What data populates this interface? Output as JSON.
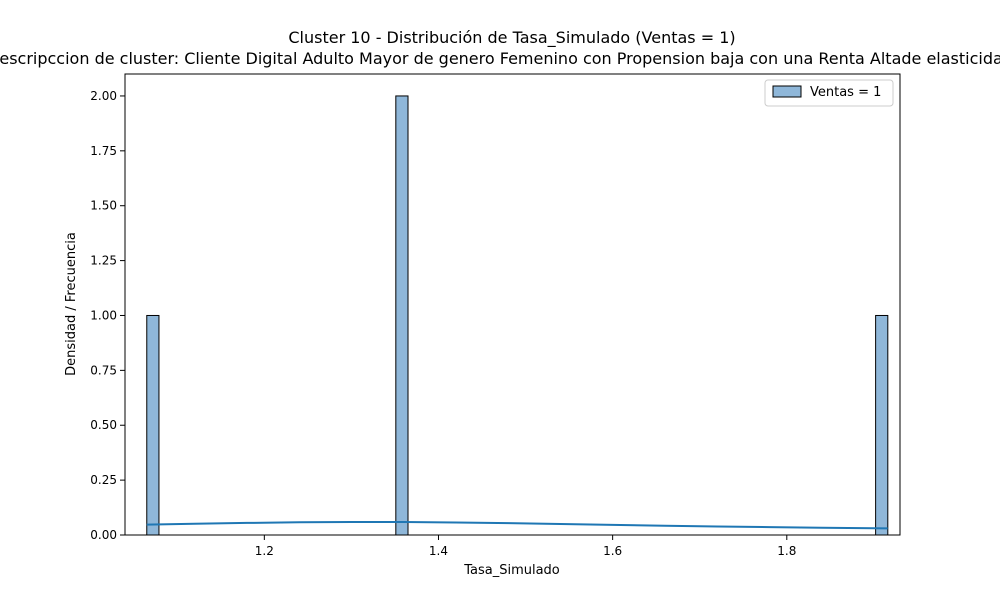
{
  "chart_data": {
    "type": "bar",
    "title": "Cluster 10 - Distribución de Tasa_Simulado (Ventas = 1)",
    "subtitle": "Descripccion de cluster: Cliente Digital Adulto Mayor de genero Femenino con Propension baja con una Renta Altade elasticidad",
    "xlabel": "Tasa_Simulado",
    "ylabel": "Densidad / Frecuencia",
    "xlim": [
      1.04,
      1.93
    ],
    "ylim": [
      0,
      2.1
    ],
    "xticks": [
      {
        "value": 1.2,
        "label": "1.2"
      },
      {
        "value": 1.4,
        "label": "1.4"
      },
      {
        "value": 1.6,
        "label": "1.6"
      },
      {
        "value": 1.8,
        "label": "1.8"
      }
    ],
    "yticks": [
      {
        "value": 0.0,
        "label": "0.00"
      },
      {
        "value": 0.25,
        "label": "0.25"
      },
      {
        "value": 0.5,
        "label": "0.50"
      },
      {
        "value": 0.75,
        "label": "0.75"
      },
      {
        "value": 1.0,
        "label": "1.00"
      },
      {
        "value": 1.25,
        "label": "1.25"
      },
      {
        "value": 1.5,
        "label": "1.50"
      },
      {
        "value": 1.75,
        "label": "1.75"
      },
      {
        "value": 2.0,
        "label": "2.00"
      }
    ],
    "bars": [
      {
        "x0": 1.065,
        "x1": 1.079,
        "value": 1
      },
      {
        "x0": 1.351,
        "x1": 1.365,
        "value": 2
      },
      {
        "x0": 1.902,
        "x1": 1.916,
        "value": 1
      }
    ],
    "kde": {
      "x": [
        1.065,
        1.12,
        1.18,
        1.24,
        1.3,
        1.36,
        1.42,
        1.48,
        1.54,
        1.6,
        1.66,
        1.72,
        1.78,
        1.84,
        1.916
      ],
      "y": [
        0.047,
        0.051,
        0.055,
        0.058,
        0.059,
        0.059,
        0.057,
        0.054,
        0.05,
        0.046,
        0.042,
        0.039,
        0.036,
        0.033,
        0.03
      ]
    },
    "legend": {
      "label": "Ventas = 1",
      "position": "top-right"
    },
    "colors": {
      "bar_fill": "#8fb7d9",
      "bar_edge": "#000000",
      "kde_line": "#1f77b4"
    },
    "grid": false
  }
}
